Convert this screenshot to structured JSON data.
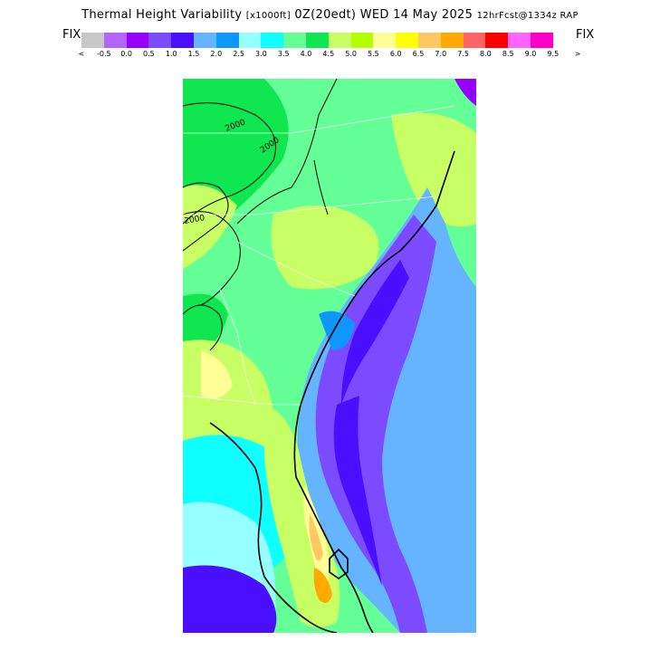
{
  "header": {
    "title_main": "Thermal Height Variability",
    "title_units": "[x1000ft]",
    "title_time": "0Z(20edt) WED 14 May 2025",
    "title_model": "12hrFcst@1334z RAP",
    "fix_left": "FIX",
    "fix_right": "FIX"
  },
  "legend": {
    "arrow_left": "<",
    "arrow_right": ">",
    "ticks": [
      "-0.5",
      "0.0",
      "0.5",
      "1.0",
      "1.5",
      "2.0",
      "2.5",
      "3.0",
      "3.5",
      "4.0",
      "4.5",
      "5.0",
      "5.5",
      "6.0",
      "6.5",
      "7.0",
      "7.5",
      "8.0",
      "8.5",
      "9.0",
      "9.5"
    ],
    "colors": [
      "#c8c8c8",
      "#b464ff",
      "#9600ff",
      "#7d4bff",
      "#4b0fff",
      "#64b4ff",
      "#0f96ff",
      "#96ffff",
      "#0fffff",
      "#64ff96",
      "#0fe650",
      "#c8ff64",
      "#b4ff00",
      "#ffff96",
      "#ffff00",
      "#ffc864",
      "#ffaa00",
      "#ff6464",
      "#ff0000",
      "#ff64ff",
      "#ff00c8"
    ]
  },
  "map": {
    "contour_labels": [
      "2000",
      "2000",
      "2000"
    ]
  }
}
